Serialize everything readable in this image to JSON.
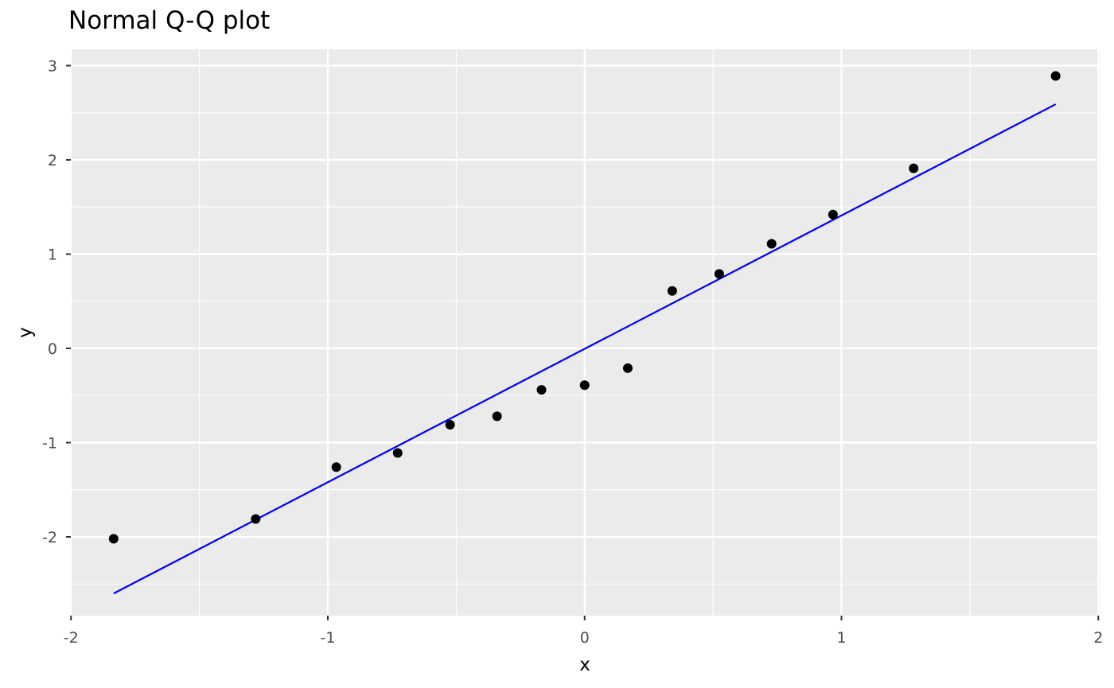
{
  "title": "Normal Q-Q plot",
  "chart_data": {
    "type": "scatter",
    "title": "Normal Q-Q plot",
    "xlabel": "x",
    "ylabel": "y",
    "xlim": [
      -2,
      2
    ],
    "ylim": [
      -2.6,
      3
    ],
    "x_ticks": [
      -2,
      -1,
      0,
      1,
      2
    ],
    "y_ticks": [
      -2,
      -1,
      0,
      1,
      2,
      3
    ],
    "grid": true,
    "points": {
      "x": [
        -1.834,
        -1.281,
        -0.967,
        -0.728,
        -0.524,
        -0.341,
        -0.168,
        0.0,
        0.168,
        0.341,
        0.524,
        0.728,
        0.967,
        1.281,
        1.834
      ],
      "y": [
        -2.02,
        -1.81,
        -1.26,
        -1.11,
        -0.81,
        -0.72,
        -0.44,
        -0.39,
        -0.21,
        0.61,
        0.79,
        1.11,
        1.42,
        1.91,
        2.89
      ]
    },
    "reference_line": {
      "x": [
        -1.834,
        1.834
      ],
      "y": [
        -2.6,
        2.59
      ],
      "color": "#0000ff"
    },
    "colors": {
      "panel_background": "#ebebeb",
      "grid": "#ffffff",
      "points": "#000000"
    }
  }
}
